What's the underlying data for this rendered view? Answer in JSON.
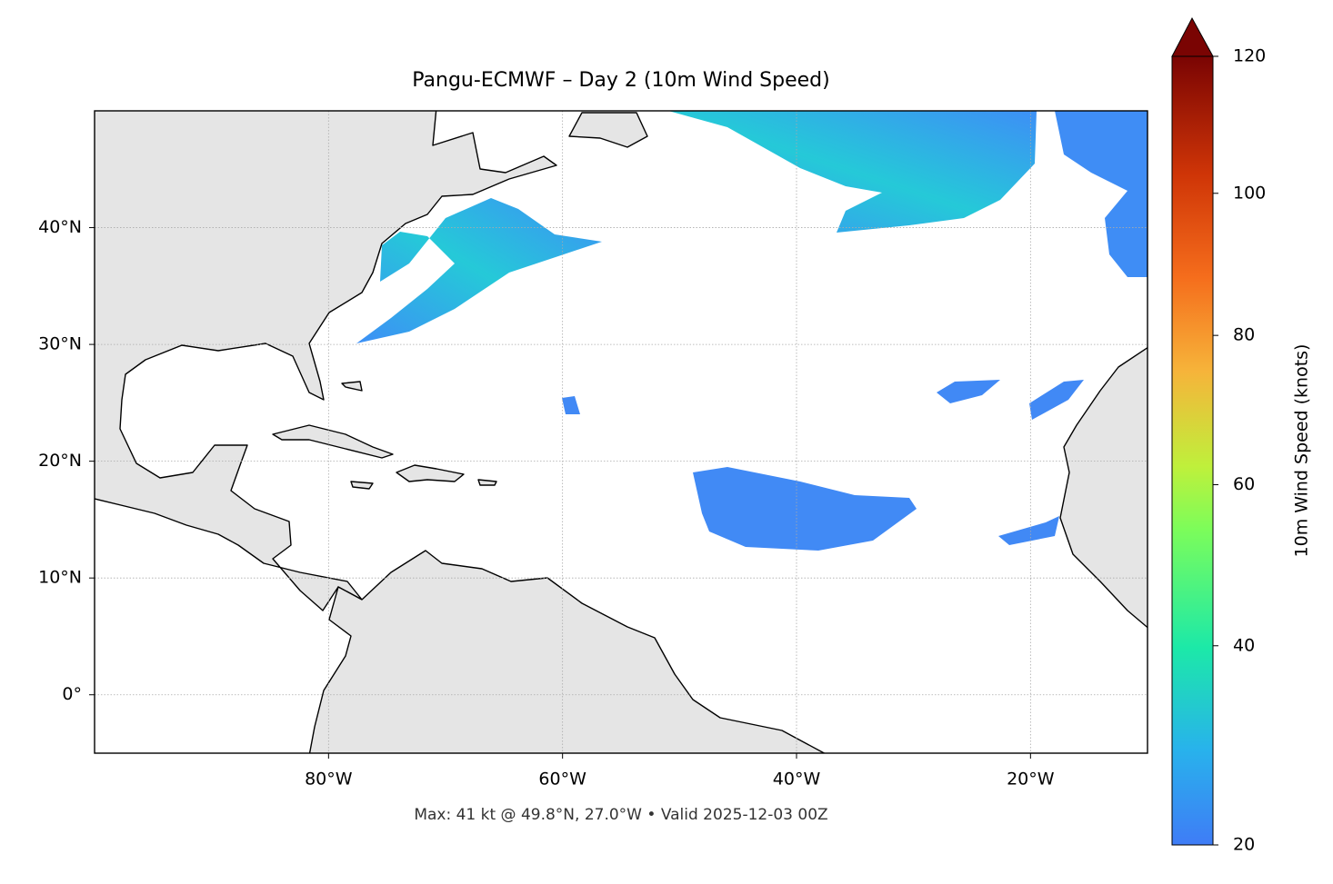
{
  "chart_data": {
    "type": "map",
    "title": "Pangu-ECMWF – Day 2 (10m Wind Speed)",
    "footnote": "Max: 41 kt @ 49.8°N, 27.0°W • Valid 2025-12-03 00Z",
    "xlim": [
      -100,
      -10
    ],
    "ylim": [
      -5,
      50
    ],
    "xticks": [
      {
        "value": -80,
        "label": "80°W"
      },
      {
        "value": -60,
        "label": "60°W"
      },
      {
        "value": -40,
        "label": "40°W"
      },
      {
        "value": -20,
        "label": "20°W"
      }
    ],
    "yticks": [
      {
        "value": 0,
        "label": "0°"
      },
      {
        "value": 10,
        "label": "10°N"
      },
      {
        "value": 20,
        "label": "20°N"
      },
      {
        "value": 30,
        "label": "30°N"
      },
      {
        "value": 40,
        "label": "40°N"
      }
    ],
    "grid": true,
    "colorbar": {
      "label": "10m Wind Speed (knots)",
      "lim": [
        20,
        120
      ],
      "ticks": [
        20,
        40,
        60,
        80,
        100,
        120
      ]
    }
  }
}
